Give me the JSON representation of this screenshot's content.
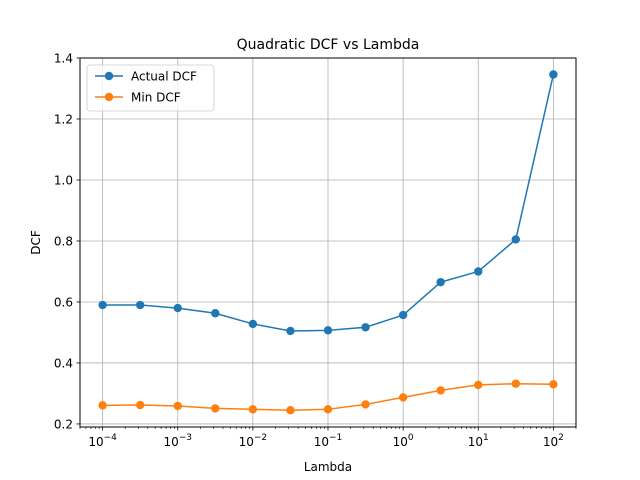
{
  "chart_data": {
    "type": "line",
    "title": "Quadratic DCF vs Lambda",
    "xlabel": "Lambda",
    "ylabel": "DCF",
    "xscale": "log",
    "x": [
      0.0001,
      0.000316,
      0.001,
      0.00316,
      0.01,
      0.0316,
      0.1,
      0.316,
      1,
      3.16,
      10,
      31.6,
      100
    ],
    "xlim": [
      5e-05,
      200
    ],
    "ylim": [
      0.19,
      1.4
    ],
    "x_ticks": [
      {
        "value": 0.0001,
        "base": "10",
        "exp": "−4"
      },
      {
        "value": 0.001,
        "base": "10",
        "exp": "−3"
      },
      {
        "value": 0.01,
        "base": "10",
        "exp": "−2"
      },
      {
        "value": 0.1,
        "base": "10",
        "exp": "−1"
      },
      {
        "value": 1,
        "base": "10",
        "exp": "0"
      },
      {
        "value": 10,
        "base": "10",
        "exp": "1"
      },
      {
        "value": 100,
        "base": "10",
        "exp": "2"
      }
    ],
    "y_ticks": [
      {
        "value": 0.2,
        "label": "0.2"
      },
      {
        "value": 0.4,
        "label": "0.4"
      },
      {
        "value": 0.6,
        "label": "0.6"
      },
      {
        "value": 0.8,
        "label": "0.8"
      },
      {
        "value": 1.0,
        "label": "1.0"
      },
      {
        "value": 1.2,
        "label": "1.2"
      },
      {
        "value": 1.4,
        "label": "1.4"
      }
    ],
    "grid": true,
    "legend_position": "top-left",
    "series": [
      {
        "name": "Actual DCF",
        "color": "#1f77b4",
        "values": [
          0.59,
          0.59,
          0.58,
          0.563,
          0.528,
          0.505,
          0.507,
          0.517,
          0.557,
          0.665,
          0.7,
          0.805,
          1.346
        ]
      },
      {
        "name": "Min DCF",
        "color": "#ff7f0e",
        "values": [
          0.261,
          0.262,
          0.259,
          0.251,
          0.248,
          0.245,
          0.248,
          0.264,
          0.287,
          0.31,
          0.328,
          0.332,
          0.33
        ]
      }
    ]
  }
}
